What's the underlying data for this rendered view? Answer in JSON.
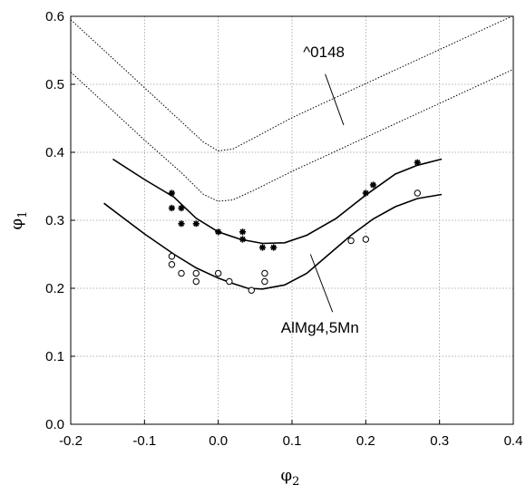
{
  "chart_data": {
    "type": "scatter",
    "xlabel": "φ",
    "xlabel_sub": "2",
    "ylabel": "φ",
    "ylabel_sub": "1",
    "xlim": [
      -0.2,
      0.4
    ],
    "ylim": [
      0.0,
      0.6
    ],
    "x_ticks": [
      -0.2,
      -0.1,
      0.0,
      0.1,
      0.2,
      0.3,
      0.4
    ],
    "x_tick_labels": [
      "-0.2",
      "-0.1",
      "0.0",
      "0.1",
      "0.2",
      "0.3",
      "0.4"
    ],
    "y_ticks": [
      0.0,
      0.1,
      0.2,
      0.3,
      0.4,
      0.5,
      0.6
    ],
    "y_tick_labels": [
      "0.0",
      "0.1",
      "0.2",
      "0.3",
      "0.4",
      "0.5",
      "0.6"
    ],
    "grid": true,
    "series": [
      {
        "style": "dotted-line",
        "x": [
          -0.2,
          -0.15,
          -0.1,
          -0.05,
          -0.02,
          0.0,
          0.02,
          0.05,
          0.1,
          0.2,
          0.3,
          0.4
        ],
        "y": [
          0.595,
          0.545,
          0.495,
          0.445,
          0.415,
          0.402,
          0.405,
          0.422,
          0.451,
          0.501,
          0.551,
          0.601
        ]
      },
      {
        "style": "dotted-line",
        "x": [
          -0.2,
          -0.15,
          -0.1,
          -0.05,
          -0.02,
          0.0,
          0.02,
          0.05,
          0.1,
          0.2,
          0.3,
          0.4
        ],
        "y": [
          0.518,
          0.468,
          0.418,
          0.37,
          0.338,
          0.328,
          0.33,
          0.345,
          0.372,
          0.422,
          0.472,
          0.522
        ]
      },
      {
        "style": "solid-line",
        "x": [
          -0.143,
          -0.1,
          -0.06,
          -0.03,
          0.0,
          0.03,
          0.06,
          0.09,
          0.12,
          0.16,
          0.2,
          0.24,
          0.27,
          0.303
        ],
        "y": [
          0.39,
          0.36,
          0.334,
          0.303,
          0.283,
          0.272,
          0.266,
          0.267,
          0.278,
          0.303,
          0.337,
          0.368,
          0.381,
          0.39
        ]
      },
      {
        "style": "solid-line",
        "x": [
          -0.155,
          -0.1,
          -0.06,
          -0.03,
          0.0,
          0.02,
          0.04,
          0.06,
          0.09,
          0.12,
          0.15,
          0.18,
          0.21,
          0.24,
          0.27,
          0.303
        ],
        "y": [
          0.325,
          0.28,
          0.25,
          0.23,
          0.215,
          0.207,
          0.2,
          0.199,
          0.205,
          0.222,
          0.25,
          0.278,
          0.302,
          0.32,
          0.332,
          0.338
        ]
      },
      {
        "style": "asterisk",
        "x": [
          -0.063,
          -0.063,
          -0.05,
          -0.05,
          -0.03,
          0.0,
          0.033,
          0.033,
          0.06,
          0.075,
          0.2,
          0.21,
          0.27
        ],
        "y": [
          0.34,
          0.318,
          0.318,
          0.295,
          0.295,
          0.283,
          0.283,
          0.272,
          0.26,
          0.26,
          0.34,
          0.352,
          0.385
        ]
      },
      {
        "style": "open-circle",
        "x": [
          -0.063,
          -0.063,
          -0.05,
          -0.03,
          -0.03,
          0.0,
          0.015,
          0.045,
          0.063,
          0.063,
          0.18,
          0.2,
          0.27
        ],
        "y": [
          0.247,
          0.235,
          0.222,
          0.222,
          0.21,
          0.222,
          0.21,
          0.197,
          0.222,
          0.21,
          0.27,
          0.272,
          0.34
        ]
      }
    ],
    "annotations": [
      {
        "text": "^0148",
        "text_pos": [
          0.115,
          0.54
        ],
        "line_from": [
          0.145,
          0.515
        ],
        "line_to": [
          0.17,
          0.44
        ]
      },
      {
        "text": "AlMg4,5Mn",
        "text_pos": [
          0.085,
          0.135
        ],
        "line_from": [
          0.155,
          0.165
        ],
        "line_to": [
          0.125,
          0.25
        ]
      }
    ]
  }
}
